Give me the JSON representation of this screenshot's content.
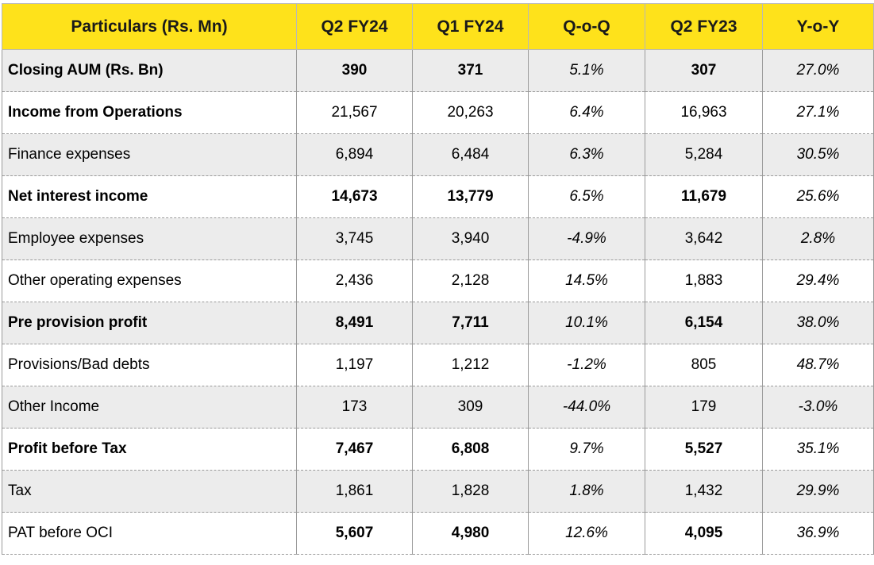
{
  "header": {
    "particulars": "Particulars (Rs. Mn)",
    "q2fy24": "Q2 FY24",
    "q1fy24": "Q1 FY24",
    "qoq": "Q-o-Q",
    "q2fy23": "Q2 FY23",
    "yoy": "Y-o-Y"
  },
  "colors": {
    "header_bg": "#FEE21B",
    "shaded_row_bg": "#ECECEC"
  },
  "rows": [
    {
      "label": "Closing AUM (Rs. Bn)",
      "q2fy24": "390",
      "q1fy24": "371",
      "qoq": "5.1%",
      "q2fy23": "307",
      "yoy": "27.0%"
    },
    {
      "label": "Income from Operations",
      "q2fy24": "21,567",
      "q1fy24": "20,263",
      "qoq": "6.4%",
      "q2fy23": "16,963",
      "yoy": "27.1%"
    },
    {
      "label": "Finance expenses",
      "q2fy24": "6,894",
      "q1fy24": "6,484",
      "qoq": "6.3%",
      "q2fy23": "5,284",
      "yoy": "30.5%"
    },
    {
      "label": "Net interest income",
      "q2fy24": "14,673",
      "q1fy24": "13,779",
      "qoq": "6.5%",
      "q2fy23": "11,679",
      "yoy": "25.6%"
    },
    {
      "label": "Employee expenses",
      "q2fy24": "3,745",
      "q1fy24": "3,940",
      "qoq": "-4.9%",
      "q2fy23": "3,642",
      "yoy": "2.8%"
    },
    {
      "label": "Other operating expenses",
      "q2fy24": "2,436",
      "q1fy24": "2,128",
      "qoq": "14.5%",
      "q2fy23": "1,883",
      "yoy": "29.4%"
    },
    {
      "label": "Pre provision profit",
      "q2fy24": "8,491",
      "q1fy24": "7,711",
      "qoq": "10.1%",
      "q2fy23": "6,154",
      "yoy": "38.0%"
    },
    {
      "label": "Provisions/Bad debts",
      "q2fy24": "1,197",
      "q1fy24": "1,212",
      "qoq": "-1.2%",
      "q2fy23": "805",
      "yoy": "48.7%"
    },
    {
      "label": "Other Income",
      "q2fy24": "173",
      "q1fy24": "309",
      "qoq": "-44.0%",
      "q2fy23": "179",
      "yoy": "-3.0%"
    },
    {
      "label": "Profit before Tax",
      "q2fy24": "7,467",
      "q1fy24": "6,808",
      "qoq": "9.7%",
      "q2fy23": "5,527",
      "yoy": "35.1%"
    },
    {
      "label": "Tax",
      "q2fy24": "1,861",
      "q1fy24": "1,828",
      "qoq": "1.8%",
      "q2fy23": "1,432",
      "yoy": "29.9%"
    },
    {
      "label": "PAT before OCI",
      "q2fy24": "5,607",
      "q1fy24": "4,980",
      "qoq": "12.6%",
      "q2fy23": "4,095",
      "yoy": "36.9%"
    }
  ]
}
